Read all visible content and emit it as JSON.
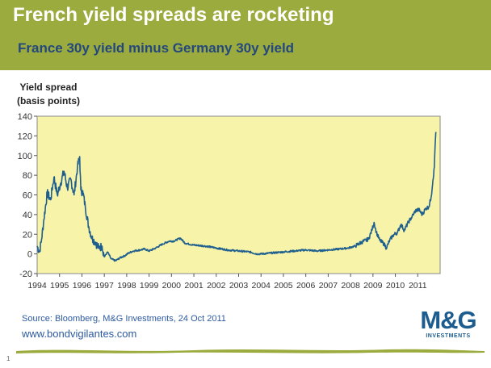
{
  "header": {
    "title": "French yield spreads are rocketing",
    "subtitle": "France 30y yield minus Germany 30y yield"
  },
  "colors": {
    "banner": "#9bab3d",
    "subtitle": "#24487d",
    "plot_background": "#f7f3a8",
    "series_line": "#1f5f8f",
    "source_text": "#2c5aa0",
    "logo": "#1d5c8e"
  },
  "footer": {
    "source": "Source: Bloomberg, M&G Investments, 24 Oct 2011",
    "website": "www.bondvigilantes.com",
    "logo_text": "M&G",
    "logo_subtext": "INVESTMENTS",
    "page_number": "1"
  },
  "chart_data": {
    "type": "line",
    "title": "France 30y yield minus Germany 30y yield",
    "ylabel": [
      "Yield spread",
      "(basis points)"
    ],
    "xlabel": "",
    "ylim": [
      -20,
      140
    ],
    "yticks": [
      -20,
      0,
      20,
      40,
      60,
      80,
      100,
      120,
      140
    ],
    "xlim": [
      1994,
      2012
    ],
    "xticks": [
      1994,
      1995,
      1996,
      1997,
      1998,
      1999,
      2000,
      2001,
      2002,
      2003,
      2004,
      2005,
      2006,
      2007,
      2008,
      2009,
      2010,
      2011
    ],
    "grid": false,
    "legend": "none",
    "series": [
      {
        "points": [
          [
            1994.0,
            8
          ],
          [
            1994.1,
            2
          ],
          [
            1994.2,
            15
          ],
          [
            1994.3,
            35
          ],
          [
            1994.45,
            62
          ],
          [
            1994.6,
            55
          ],
          [
            1994.75,
            78
          ],
          [
            1994.9,
            60
          ],
          [
            1995.05,
            72
          ],
          [
            1995.2,
            84
          ],
          [
            1995.35,
            67
          ],
          [
            1995.5,
            76
          ],
          [
            1995.65,
            60
          ],
          [
            1995.8,
            88
          ],
          [
            1995.9,
            99
          ],
          [
            1995.95,
            65
          ],
          [
            1996.05,
            62
          ],
          [
            1996.15,
            48
          ],
          [
            1996.3,
            28
          ],
          [
            1996.45,
            16
          ],
          [
            1996.6,
            12
          ],
          [
            1996.75,
            6
          ],
          [
            1996.9,
            8
          ],
          [
            1997.0,
            -3
          ],
          [
            1997.15,
            2
          ],
          [
            1997.3,
            -5
          ],
          [
            1997.5,
            -7
          ],
          [
            1997.7,
            -4
          ],
          [
            1997.9,
            -2
          ],
          [
            1998.1,
            1
          ],
          [
            1998.3,
            3
          ],
          [
            1998.6,
            4
          ],
          [
            1998.8,
            5
          ],
          [
            1999.0,
            3
          ],
          [
            1999.3,
            6
          ],
          [
            1999.6,
            10
          ],
          [
            1999.9,
            13
          ],
          [
            2000.1,
            13
          ],
          [
            2000.4,
            16
          ],
          [
            2000.6,
            11
          ],
          [
            2001.0,
            9
          ],
          [
            2001.5,
            8
          ],
          [
            2002.0,
            6
          ],
          [
            2002.5,
            4
          ],
          [
            2003.0,
            3
          ],
          [
            2003.5,
            2
          ],
          [
            2003.8,
            0
          ],
          [
            2004.0,
            0
          ],
          [
            2004.5,
            1
          ],
          [
            2005.0,
            2
          ],
          [
            2005.5,
            3
          ],
          [
            2006.0,
            4
          ],
          [
            2006.5,
            3
          ],
          [
            2007.0,
            4
          ],
          [
            2007.5,
            5
          ],
          [
            2007.9,
            6
          ],
          [
            2008.2,
            8
          ],
          [
            2008.5,
            12
          ],
          [
            2008.8,
            15
          ],
          [
            2008.95,
            24
          ],
          [
            2009.05,
            32
          ],
          [
            2009.15,
            22
          ],
          [
            2009.3,
            14
          ],
          [
            2009.5,
            10
          ],
          [
            2009.6,
            6
          ],
          [
            2009.75,
            14
          ],
          [
            2009.9,
            19
          ],
          [
            2010.1,
            22
          ],
          [
            2010.25,
            30
          ],
          [
            2010.4,
            24
          ],
          [
            2010.6,
            33
          ],
          [
            2010.75,
            38
          ],
          [
            2010.9,
            44
          ],
          [
            2011.05,
            45
          ],
          [
            2011.2,
            40
          ],
          [
            2011.35,
            46
          ],
          [
            2011.5,
            48
          ],
          [
            2011.6,
            58
          ],
          [
            2011.68,
            75
          ],
          [
            2011.74,
            88
          ],
          [
            2011.78,
            112
          ],
          [
            2011.81,
            124
          ]
        ]
      }
    ]
  }
}
